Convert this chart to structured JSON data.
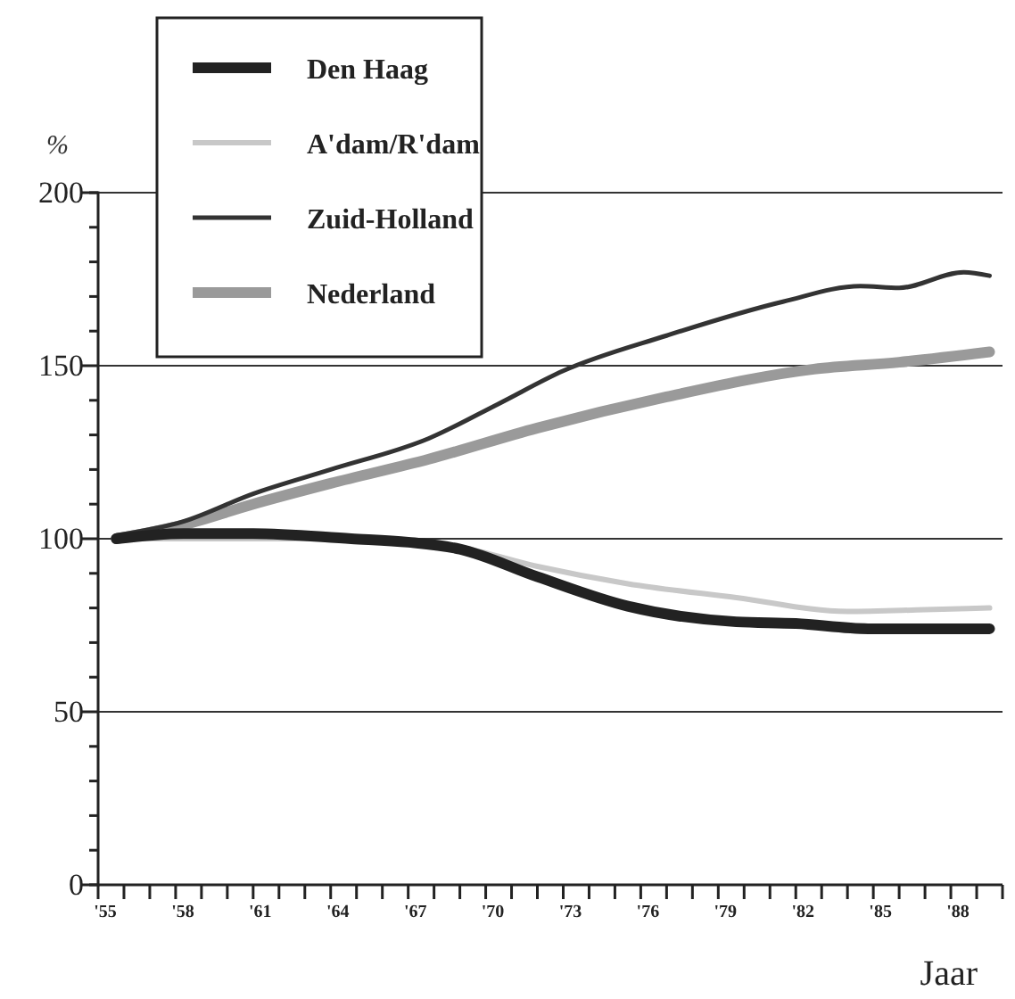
{
  "chart_data": {
    "type": "line",
    "ylabel": "%",
    "xlabel": "Jaar",
    "xlim": [
      1955,
      1990
    ],
    "ylim": [
      0,
      200
    ],
    "yticks": [
      0,
      {
        "value": 10,
        "label": null
      },
      {
        "value": 20,
        "label": null
      },
      {
        "value": 30,
        "label": null
      },
      {
        "value": 40,
        "label": null
      },
      50,
      {
        "value": 60,
        "label": null
      },
      {
        "value": 70,
        "label": null
      },
      {
        "value": 80,
        "label": null
      },
      {
        "value": 90,
        "label": null
      },
      100,
      {
        "value": 110,
        "label": null
      },
      {
        "value": 120,
        "label": null
      },
      {
        "value": 130,
        "label": null
      },
      {
        "value": 140,
        "label": null
      },
      150,
      {
        "value": 160,
        "label": null
      },
      {
        "value": 170,
        "label": null
      },
      {
        "value": 180,
        "label": null
      },
      {
        "value": 190,
        "label": null
      },
      200
    ],
    "xticks": [
      {
        "value": 1955,
        "label": "'55"
      },
      {
        "value": 1956,
        "label": null
      },
      {
        "value": 1957,
        "label": null
      },
      {
        "value": 1958,
        "label": "'58"
      },
      {
        "value": 1959,
        "label": null
      },
      {
        "value": 1960,
        "label": null
      },
      {
        "value": 1961,
        "label": "'61"
      },
      {
        "value": 1962,
        "label": null
      },
      {
        "value": 1963,
        "label": null
      },
      {
        "value": 1964,
        "label": "'64"
      },
      {
        "value": 1965,
        "label": null
      },
      {
        "value": 1966,
        "label": null
      },
      {
        "value": 1967,
        "label": "'67"
      },
      {
        "value": 1968,
        "label": null
      },
      {
        "value": 1969,
        "label": null
      },
      {
        "value": 1970,
        "label": "'70"
      },
      {
        "value": 1971,
        "label": null
      },
      {
        "value": 1972,
        "label": null
      },
      {
        "value": 1973,
        "label": "'73"
      },
      {
        "value": 1974,
        "label": null
      },
      {
        "value": 1975,
        "label": null
      },
      {
        "value": 1976,
        "label": "'76"
      },
      {
        "value": 1977,
        "label": null
      },
      {
        "value": 1978,
        "label": null
      },
      {
        "value": 1979,
        "label": "'79"
      },
      {
        "value": 1980,
        "label": null
      },
      {
        "value": 1981,
        "label": null
      },
      {
        "value": 1982,
        "label": "'82"
      },
      {
        "value": 1983,
        "label": null
      },
      {
        "value": 1984,
        "label": null
      },
      {
        "value": 1985,
        "label": "'85"
      },
      {
        "value": 1986,
        "label": null
      },
      {
        "value": 1987,
        "label": null
      },
      {
        "value": 1988,
        "label": "'88"
      },
      {
        "value": 1989,
        "label": null
      },
      {
        "value": 1990,
        "label": null
      }
    ],
    "grid": "y",
    "legend": "top left",
    "marker": "none",
    "series": [
      {
        "name": "Den Haag",
        "color": "#222222",
        "x": [
          1955.7,
          1958.3,
          1961,
          1964.8,
          1967,
          1969,
          1972,
          1975.5,
          1979.7,
          1982,
          1984.8,
          1987,
          1989.5
        ],
        "values": [
          100,
          101.5,
          101.5,
          100,
          99,
          97,
          89,
          80.5,
          76,
          75.5,
          74,
          74,
          74
        ]
      },
      {
        "name": "A'dam/R'dam",
        "color": "#c8c8c8",
        "x": [
          1955.7,
          1964.8,
          1967,
          1969,
          1972,
          1975.5,
          1979.7,
          1984,
          1987,
          1989.5
        ],
        "values": [
          100,
          100,
          99,
          97.5,
          92,
          87,
          83,
          79,
          79.5,
          80
        ]
      },
      {
        "name": "Zuid-Holland",
        "color": "#333333",
        "x": [
          1955.7,
          1958.3,
          1961,
          1964,
          1967.8,
          1970.5,
          1973,
          1977,
          1981.5,
          1984.5,
          1986,
          1988.5,
          1989.5
        ],
        "values": [
          101,
          105,
          113,
          120,
          129,
          139,
          148.5,
          158.7,
          168.5,
          173,
          172.5,
          177,
          176
        ]
      },
      {
        "name": "Nederland",
        "color": "#9a9a9a",
        "x": [
          1955.7,
          1958.3,
          1961,
          1964,
          1967.8,
          1972,
          1977,
          1982.7,
          1986,
          1989.5
        ],
        "values": [
          100,
          104,
          110,
          116,
          123,
          132,
          141,
          149,
          151,
          154
        ]
      }
    ]
  }
}
